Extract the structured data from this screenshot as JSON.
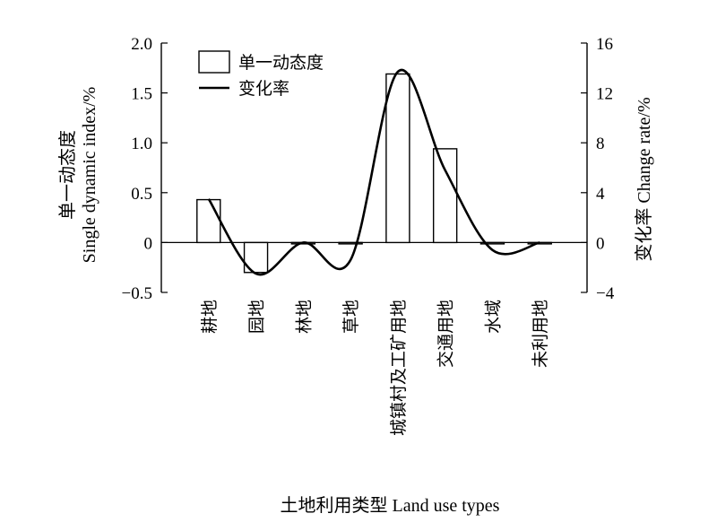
{
  "chart_data": {
    "type": "bar+line",
    "categories": [
      "耕地",
      "园地",
      "林地",
      "草地",
      "城镇村及工矿用地",
      "交通用地",
      "水域",
      "未利用地"
    ],
    "series": [
      {
        "name": "单一动态度",
        "type": "bar",
        "axis": "left",
        "values": [
          0.43,
          -0.3,
          0.0,
          -0.01,
          1.69,
          0.94,
          -0.01,
          -0.01
        ]
      },
      {
        "name": "变化率",
        "type": "line",
        "axis": "right",
        "values": [
          3.5,
          -2.5,
          0.0,
          -1.4,
          13.7,
          5.8,
          -0.6,
          0.0
        ]
      }
    ],
    "xlabel": "土地利用类型 Land use types",
    "ylabel_left": [
      "单一动态度",
      "Single dynamic index/%"
    ],
    "ylabel_right": "变化率 Change rate/%",
    "ylim_left": [
      -0.5,
      2.0
    ],
    "yticks_left": [
      "−0.5",
      "0",
      "0.5",
      "1.0",
      "1.5",
      "2.0"
    ],
    "yticks_left_values": [
      -0.5,
      0,
      0.5,
      1.0,
      1.5,
      2.0
    ],
    "ylim_right": [
      -4,
      16
    ],
    "yticks_right": [
      "−4",
      "0",
      "4",
      "8",
      "12",
      "16"
    ],
    "yticks_right_values": [
      -4,
      0,
      4,
      8,
      12,
      16
    ],
    "legend_position": "top-left",
    "grid": false
  }
}
